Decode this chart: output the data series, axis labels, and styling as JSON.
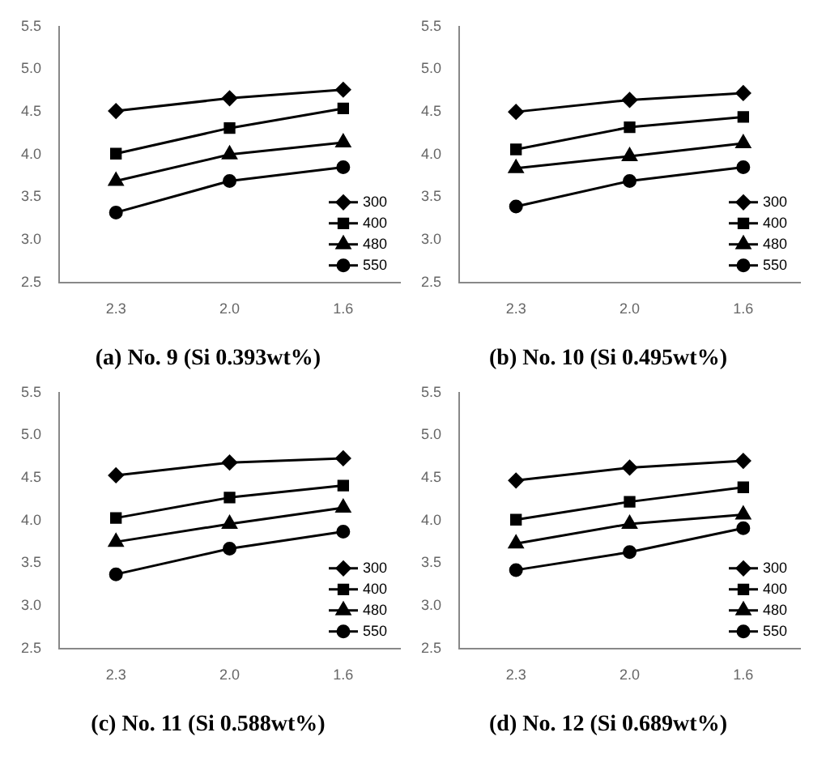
{
  "chart_data": [
    {
      "type": "line",
      "title": "(a) No. 9 (Si 0.393wt%)",
      "categories": [
        "2.3",
        "2.0",
        "1.6"
      ],
      "ylim": [
        2.5,
        5.5
      ],
      "yticks": [
        2.5,
        {
          "value": 3,
          "label": "3.0"
        },
        3.5,
        {
          "value": 4,
          "label": "4.0"
        },
        4.5,
        {
          "value": 5,
          "label": "5.0"
        },
        5.5
      ],
      "grid": false,
      "legend": "bottom right",
      "series": [
        {
          "name": "300",
          "color": "#000000",
          "marker": "diamond",
          "values": [
            4.51,
            4.66,
            4.76
          ]
        },
        {
          "name": "400",
          "color": "#000000",
          "marker": "square",
          "values": [
            4.01,
            4.31,
            4.54
          ]
        },
        {
          "name": "480",
          "color": "#000000",
          "marker": "triangle",
          "values": [
            3.69,
            4.0,
            4.14
          ]
        },
        {
          "name": "550",
          "color": "#000000",
          "marker": "circle",
          "values": [
            3.32,
            3.69,
            3.85
          ]
        }
      ]
    },
    {
      "type": "line",
      "title": "(b) No. 10 (Si 0.495wt%)",
      "categories": [
        "2.3",
        "2.0",
        "1.6"
      ],
      "ylim": [
        2.5,
        5.5
      ],
      "yticks": [
        2.5,
        {
          "value": 3,
          "label": "3.0"
        },
        3.5,
        {
          "value": 4,
          "label": "4.0"
        },
        4.5,
        {
          "value": 5,
          "label": "5.0"
        },
        5.5
      ],
      "grid": false,
      "legend": "bottom right",
      "series": [
        {
          "name": "300",
          "color": "#000000",
          "marker": "diamond",
          "values": [
            4.5,
            4.64,
            4.72
          ]
        },
        {
          "name": "400",
          "color": "#000000",
          "marker": "square",
          "values": [
            4.06,
            4.32,
            4.44
          ]
        },
        {
          "name": "480",
          "color": "#000000",
          "marker": "triangle",
          "values": [
            3.84,
            3.98,
            4.13
          ]
        },
        {
          "name": "550",
          "color": "#000000",
          "marker": "circle",
          "values": [
            3.39,
            3.69,
            3.85
          ]
        }
      ]
    },
    {
      "type": "line",
      "title": "(c) No. 11 (Si 0.588wt%)",
      "categories": [
        "2.3",
        "2.0",
        "1.6"
      ],
      "ylim": [
        2.5,
        5.5
      ],
      "yticks": [
        2.5,
        {
          "value": 3,
          "label": "3.0"
        },
        3.5,
        {
          "value": 4,
          "label": "4.0"
        },
        4.5,
        {
          "value": 5,
          "label": "5.0"
        },
        5.5
      ],
      "grid": false,
      "legend": "bottom right",
      "series": [
        {
          "name": "300",
          "color": "#000000",
          "marker": "diamond",
          "values": [
            4.53,
            4.68,
            4.73
          ]
        },
        {
          "name": "400",
          "color": "#000000",
          "marker": "square",
          "values": [
            4.03,
            4.27,
            4.41
          ]
        },
        {
          "name": "480",
          "color": "#000000",
          "marker": "triangle",
          "values": [
            3.75,
            3.96,
            4.15
          ]
        },
        {
          "name": "550",
          "color": "#000000",
          "marker": "circle",
          "values": [
            3.37,
            3.67,
            3.87
          ]
        }
      ]
    },
    {
      "type": "line",
      "title": "(d) No. 12 (Si 0.689wt%)",
      "categories": [
        "2.3",
        "2.0",
        "1.6"
      ],
      "ylim": [
        2.5,
        5.5
      ],
      "yticks": [
        2.5,
        {
          "value": 3,
          "label": "3.0"
        },
        3.5,
        {
          "value": 4,
          "label": "4.0"
        },
        4.5,
        {
          "value": 5,
          "label": "5.0"
        },
        5.5
      ],
      "grid": false,
      "legend": "bottom right",
      "series": [
        {
          "name": "300",
          "color": "#000000",
          "marker": "diamond",
          "values": [
            4.47,
            4.62,
            4.7
          ]
        },
        {
          "name": "400",
          "color": "#000000",
          "marker": "square",
          "values": [
            4.01,
            4.22,
            4.39
          ]
        },
        {
          "name": "480",
          "color": "#000000",
          "marker": "triangle",
          "values": [
            3.73,
            3.96,
            4.07
          ]
        },
        {
          "name": "550",
          "color": "#000000",
          "marker": "circle",
          "values": [
            3.42,
            3.63,
            3.91
          ]
        }
      ]
    }
  ]
}
